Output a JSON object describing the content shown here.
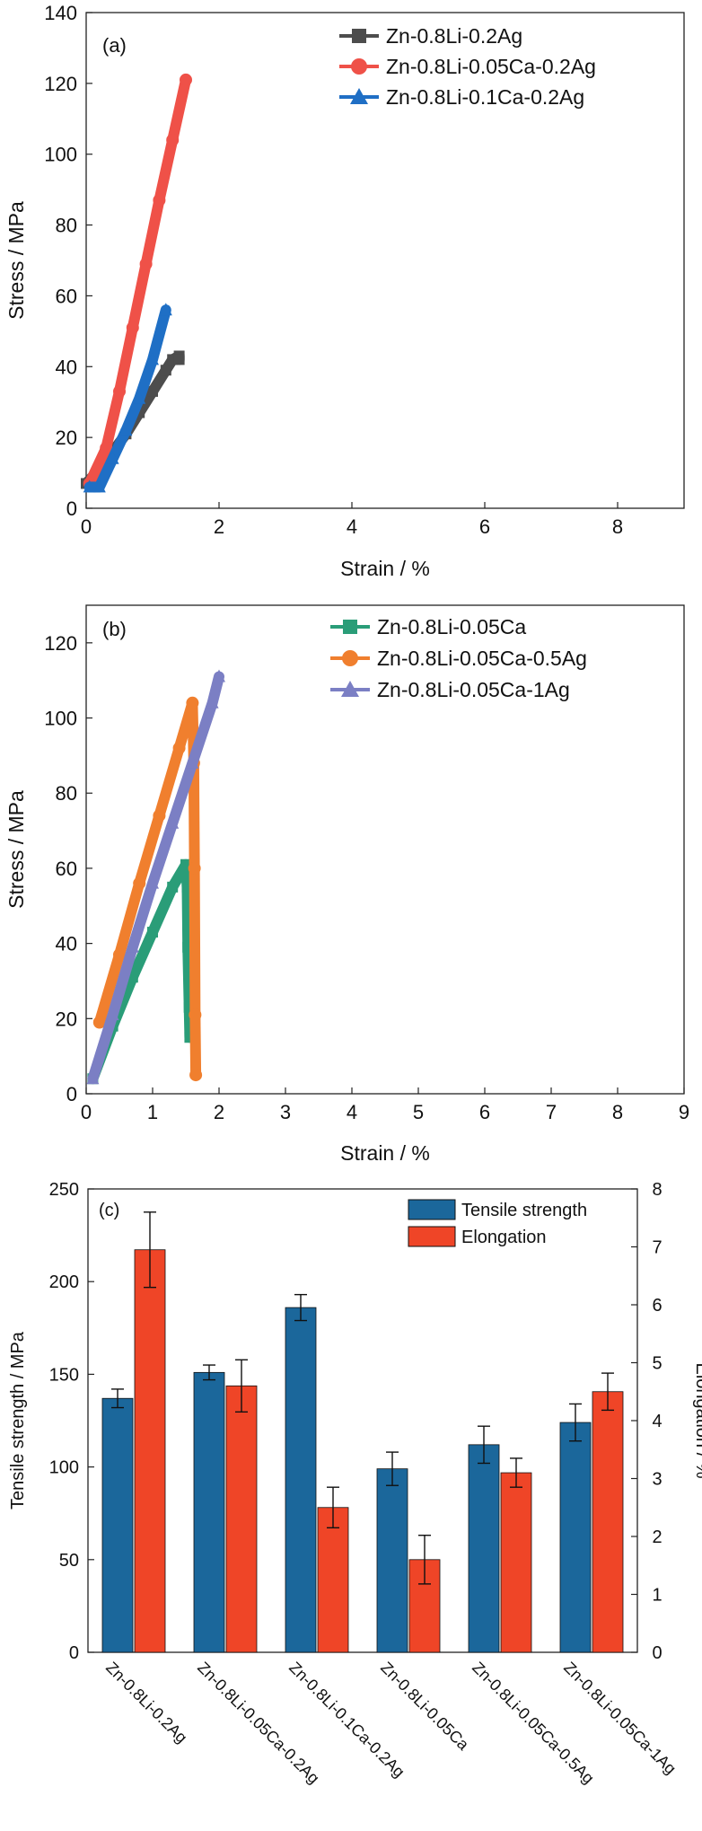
{
  "chart_data": [
    {
      "id": "a",
      "type": "line",
      "panel_label": "(a)",
      "xlabel": "Strain / %",
      "ylabel": "Stress / MPa",
      "xlim": [
        0,
        9
      ],
      "ylim": [
        0,
        140
      ],
      "xticks": [
        0,
        2,
        4,
        6,
        8
      ],
      "yticks": [
        0,
        20,
        40,
        60,
        80,
        100,
        120,
        140
      ],
      "legend_position": "top-right",
      "series": [
        {
          "name": "Zn-0.8Li-0.2Ag",
          "marker": "square",
          "color": "#4d4d4d",
          "x": [
            0.0,
            0.2,
            0.4,
            0.6,
            0.8,
            1.0,
            1.2,
            1.3,
            1.4,
            1.4
          ],
          "y": [
            7,
            11,
            16,
            21,
            27,
            33,
            39,
            42,
            43,
            42
          ]
        },
        {
          "name": "Zn-0.8Li-0.05Ca-0.2Ag",
          "marker": "circle",
          "color": "#ef5148",
          "x": [
            0.05,
            0.3,
            0.5,
            0.7,
            0.9,
            1.1,
            1.3,
            1.5
          ],
          "y": [
            7,
            17,
            33,
            51,
            69,
            87,
            104,
            121
          ]
        },
        {
          "name": "Zn-0.8Li-0.1Ca-0.2Ag",
          "marker": "triangle",
          "color": "#1f6fc5",
          "x": [
            0.05,
            0.2,
            0.4,
            0.6,
            0.8,
            1.0,
            1.2
          ],
          "y": [
            6,
            6,
            14,
            22,
            31,
            42,
            56
          ]
        }
      ]
    },
    {
      "id": "b",
      "type": "line",
      "panel_label": "(b)",
      "xlabel": "Strain / %",
      "ylabel": "Stress / MPa",
      "xlim": [
        0,
        9
      ],
      "ylim": [
        0,
        130
      ],
      "xticks": [
        0,
        1,
        2,
        3,
        4,
        5,
        6,
        7,
        8,
        9
      ],
      "yticks": [
        0,
        20,
        40,
        60,
        80,
        100,
        120
      ],
      "legend_position": "top-right",
      "series": [
        {
          "name": "Zn-0.8Li-0.05Ca",
          "marker": "square",
          "color": "#2a9d78",
          "x": [
            0.1,
            0.4,
            0.7,
            1.0,
            1.3,
            1.5,
            1.52,
            1.53,
            1.55,
            1.56
          ],
          "y": [
            4,
            18,
            31,
            43,
            55,
            61,
            55,
            39,
            23,
            15
          ]
        },
        {
          "name": "Zn-0.8Li-0.05Ca-0.5Ag",
          "marker": "circle",
          "color": "#f07f2e",
          "x": [
            0.2,
            0.5,
            0.8,
            1.1,
            1.4,
            1.6,
            1.62,
            1.63,
            1.64,
            1.65
          ],
          "y": [
            19,
            37,
            56,
            74,
            92,
            104,
            88,
            60,
            21,
            5
          ]
        },
        {
          "name": "Zn-0.8Li-0.05Ca-1Ag",
          "marker": "triangle",
          "color": "#7b7fc4",
          "x": [
            0.1,
            0.4,
            0.7,
            1.0,
            1.3,
            1.6,
            1.9,
            2.0
          ],
          "y": [
            4,
            21,
            39,
            56,
            72,
            88,
            104,
            111
          ]
        }
      ]
    },
    {
      "id": "c",
      "type": "bar",
      "panel_label": "(c)",
      "categories": [
        "Zn-0.8Li-0.2Ag",
        "Zn-0.8Li-0.05Ca-0.2Ag",
        "Zn-0.8Li-0.1Ca-0.2Ag",
        "Zn-0.8Li-0.05Ca",
        "Zn-0.8Li-0.05Ca-0.5Ag",
        "Zn-0.8Li-0.05Ca-1Ag"
      ],
      "ylabel": "Tensile strength / MPa",
      "y2label": "Elongation / %",
      "ylim": [
        0,
        250
      ],
      "y2lim": [
        0,
        8
      ],
      "yticks": [
        0,
        50,
        100,
        150,
        200,
        250
      ],
      "y2ticks": [
        0,
        1,
        2,
        3,
        4,
        5,
        6,
        7,
        8
      ],
      "legend_position": "top-right",
      "series": [
        {
          "name": "Tensile strength",
          "axis": "left",
          "color": "#1b679b",
          "values": [
            137,
            151,
            186,
            99,
            112,
            124
          ],
          "errors": [
            5,
            4,
            7,
            9,
            10,
            10
          ]
        },
        {
          "name": "Elongation",
          "axis": "right",
          "color": "#ef4527",
          "values": [
            6.95,
            4.6,
            2.5,
            1.6,
            3.1,
            4.5
          ],
          "errors": [
            0.65,
            0.45,
            0.35,
            0.42,
            0.25,
            0.32
          ]
        }
      ]
    }
  ]
}
